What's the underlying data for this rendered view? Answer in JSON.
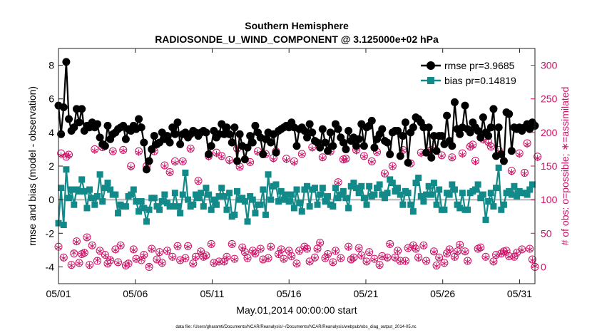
{
  "chart_data": {
    "type": "line",
    "title": "Southern Hemisphere",
    "subtitle": "RADIOSONDE_U_WIND_COMPONENT @ 3.125000e+02 hPa",
    "xlabel": "May.01,2014 00:00:00 start",
    "ylabel_left": "rmse and bias (model - observation)",
    "ylabel_right": "# of obs: o=possible; ∗=assimilated",
    "footer": "data file: /Users/gharamti/Documents/NCAR/Reanalysis/~/Documents/NCAR/Reanalysis/webpub/obs_diag_output_2014-05.nc",
    "xlim": [
      1,
      32
    ],
    "ylim_left": [
      -5,
      9
    ],
    "ylim_right": [
      -25,
      325
    ],
    "x_ticks": [
      1,
      6,
      11,
      16,
      21,
      26,
      31
    ],
    "x_tick_labels": [
      "05/01",
      "05/06",
      "05/11",
      "05/16",
      "05/21",
      "05/26",
      "05/31"
    ],
    "y_ticks_left": [
      -4,
      -2,
      0,
      2,
      4,
      6,
      8
    ],
    "y_tick_labels_left": [
      "-4",
      "-2",
      "0",
      "2",
      "4",
      "6",
      "8"
    ],
    "y_ticks_right": [
      0,
      50,
      100,
      150,
      200,
      250,
      300
    ],
    "y_tick_labels_right": [
      "0",
      "50",
      "100",
      "150",
      "200",
      "250",
      "300"
    ],
    "legend_position": "top-right",
    "colors": {
      "rmse": "#000000",
      "bias": "#138a8a",
      "obs": "#cc1166",
      "zero_line": "#c0c0c0"
    },
    "series": [
      {
        "name": "rmse",
        "legend": "rmse pr=3.9685",
        "axis": "left",
        "values": [
          5.6,
          3.9,
          5.5,
          8.2,
          4.8,
          4.1,
          4.3,
          5.4,
          4.6,
          5.4,
          4.1,
          4.4,
          4.3,
          4.6,
          4.3,
          4.5,
          3.7,
          3.3,
          3.2,
          4.4,
          3.6,
          3.9,
          4.0,
          4.2,
          4.3,
          4.4,
          3.6,
          4.2,
          4.1,
          4.4,
          4.2,
          4.8,
          4.3,
          3.4,
          1.8,
          2.3,
          3.0,
          3.8,
          3.3,
          3.4,
          4.0,
          3.6,
          3.8,
          3.4,
          4.3,
          3.9,
          4.6,
          3.3,
          3.9,
          4.0,
          3.7,
          3.9,
          4.1,
          4.0,
          3.8,
          4.0,
          4.1,
          4.0,
          2.7,
          3.2,
          4.1,
          3.7,
          3.9,
          4.5,
          3.9,
          4.3,
          3.9,
          3.4,
          4.3,
          2.3,
          3.9,
          3.2,
          2.4,
          3.1,
          3.8,
          3.4,
          4.4,
          4.0,
          3.7,
          2.7,
          3.6,
          4.0,
          3.4,
          3.9,
          2.8,
          4.1,
          4.2,
          4.3,
          4.4,
          4.3,
          4.6,
          4.3,
          3.2,
          4.2,
          4.3,
          4.1,
          3.7,
          4.5,
          4.0,
          3.5,
          3.4,
          3.1,
          4.2,
          3.4,
          2.9,
          4.0,
          3.2,
          4.5,
          4.2,
          3.7,
          3.4,
          3.0,
          4.1,
          3.5,
          3.7,
          3.2,
          3.6,
          4.5,
          3.2,
          4.3,
          4.4,
          4.7,
          3.1,
          3.6,
          3.9,
          4.2,
          3.5,
          3.4,
          2.7,
          4.0,
          4.1,
          4.1,
          2.6,
          3.8,
          4.6,
          2.2,
          4.0,
          4.3,
          4.9,
          4.8,
          4.6,
          4.3,
          2.8,
          4.3,
          2.5,
          3.8,
          2.9,
          3.8,
          3.8,
          3.3,
          5.0,
          3.5,
          3.2,
          5.8,
          4.2,
          3.9,
          4.3,
          5.6,
          4.2,
          4.0,
          4.6,
          4.3,
          4.1,
          3.7,
          4.9,
          4.0,
          3.8,
          4.3,
          5.4,
          2.6,
          4.3,
          2.7,
          2.3,
          5.2,
          5.1,
          2.9,
          4.3,
          4.2,
          4.3,
          4.1,
          4.3,
          4.5,
          4.2,
          4.6,
          4.4
        ]
      },
      {
        "name": "bias",
        "legend": "bias pr=0.14819",
        "axis": "left",
        "values": [
          -1.4,
          0.7,
          -1.5,
          1.8,
          0.1,
          0.6,
          -0.3,
          0.6,
          0.5,
          1.2,
          0.5,
          -0.5,
          0.6,
          0.1,
          -0.3,
          0.2,
          1.5,
          -0.1,
          0.7,
          1.0,
          0.6,
          0.3,
          0.3,
          -0.8,
          -0.3,
          -0.4,
          -0.4,
          0.2,
          0.3,
          0.6,
          -0.1,
          -0.7,
          -0.1,
          -0.5,
          -1.3,
          -0.6,
          0.1,
          0.1,
          -0.4,
          -0.6,
          -0.1,
          0.3,
          -0.2,
          -0.4,
          -0.4,
          0.4,
          -0.4,
          -0.8,
          0.3,
          1.6,
          0.0,
          -0.4,
          -0.3,
          0.3,
          0.1,
          0.4,
          -0.4,
          0.7,
          0.3,
          -0.6,
          0.0,
          -0.3,
          0.2,
          0.7,
          0.2,
          -0.6,
          0.4,
          -1.0,
          -0.9,
          0.5,
          0.0,
          0.1,
          -0.1,
          -1.3,
          0.2,
          0.0,
          -0.8,
          -0.3,
          -0.3,
          0.6,
          -0.9,
          1.5,
          0.0,
          0.8,
          0.9,
          -0.1,
          0.5,
          0.0,
          0.3,
          -0.1,
          0.3,
          -0.5,
          0.6,
          -0.2,
          -0.7,
          0.6,
          0.8,
          -0.4,
          0.6,
          0.7,
          -0.3,
          0.3,
          0.7,
          -0.1,
          0.2,
          -0.3,
          -0.4,
          0.7,
          0.1,
          0.3,
          0.5,
          0.1,
          -0.5,
          0.8,
          1.0,
          0.7,
          0.4,
          0.8,
          0.1,
          -0.3,
          0.8,
          0.2,
          0.3,
          0.7,
          0.9,
          0.3,
          0.1,
          0.4,
          1.2,
          1.0,
          0.5,
          0.7,
          0.3,
          -0.3,
          0.5,
          0.4,
          -0.3,
          -0.7,
          1.0,
          1.3,
          0.2,
          -0.1,
          0.3,
          0.8,
          0.3,
          1.0,
          -0.3,
          0.6,
          -0.6,
          -0.6,
          0.4,
          0.3,
          0.9,
          0.6,
          -0.3,
          -0.5,
          0.4,
          -0.6,
          -0.6,
          0.4,
          0.5,
          0.6,
          0.9,
          0.1,
          0.3,
          -1.2,
          -0.1,
          0.4,
          -0.4,
          0.7,
          1.9,
          -0.6,
          -0.3,
          0.4,
          0.5,
          0.3,
          0.8,
          0.2,
          0.5,
          0.4,
          0.4,
          0.3,
          0.6,
          0.9
        ]
      },
      {
        "name": "obs possible",
        "axis": "right",
        "values": [
          30,
          169,
          14,
          164,
          167,
          3,
          20,
          38,
          6,
          19,
          21,
          44,
          3,
          32,
          175,
          9,
          24,
          178,
          18,
          5,
          10,
          172,
          26,
          7,
          32,
          174,
          2,
          5,
          150,
          26,
          12,
          172,
          10,
          18,
          150,
          0,
          27,
          172,
          11,
          22,
          6,
          151,
          24,
          141,
          15,
          157,
          31,
          10,
          157,
          13,
          31,
          176,
          5,
          15,
          128,
          23,
          15,
          17,
          165,
          34,
          6,
          170,
          8,
          165,
          8,
          15,
          159,
          34,
          12,
          176,
          149,
          29,
          22,
          13,
          156,
          24,
          20,
          172,
          27,
          11,
          168,
          13,
          30,
          162,
          172,
          19,
          26,
          12,
          161,
          24,
          16,
          157,
          5,
          24,
          168,
          30,
          27,
          8,
          178,
          14,
          27,
          36,
          163,
          13,
          19,
          172,
          7,
          24,
          126,
          13,
          160,
          161,
          30,
          11,
          14,
          174,
          28,
          17,
          165,
          8,
          22,
          157,
          12,
          171,
          3,
          16,
          139,
          14,
          34,
          150,
          14,
          24,
          9,
          174,
          9,
          28,
          154,
          32,
          27,
          14,
          170,
          32,
          9,
          172,
          174,
          23,
          2,
          14,
          166,
          6,
          20,
          26,
          163,
          15,
          23,
          33,
          169,
          23,
          9,
          179,
          182,
          158,
          27,
          29,
          190,
          15,
          186,
          179,
          8,
          18,
          174,
          20,
          23,
          24,
          16,
          143,
          15,
          21,
          169,
          26,
          140,
          184,
          27,
          11,
          0,
          164
        ]
      },
      {
        "name": "obs assimilated",
        "axis": "right",
        "values": [
          29,
          166,
          13,
          165,
          166,
          2,
          21,
          37,
          5,
          18,
          22,
          43,
          2,
          31,
          173,
          10,
          23,
          177,
          17,
          4,
          11,
          171,
          25,
          6,
          31,
          173,
          1,
          6,
          148,
          25,
          11,
          170,
          11,
          17,
          148,
          1,
          26,
          171,
          10,
          21,
          5,
          150,
          23,
          140,
          14,
          155,
          30,
          9,
          156,
          12,
          30,
          175,
          4,
          14,
          127,
          22,
          14,
          16,
          163,
          33,
          5,
          168,
          7,
          164,
          7,
          14,
          157,
          33,
          11,
          175,
          148,
          28,
          21,
          12,
          155,
          23,
          19,
          170,
          26,
          10,
          167,
          12,
          29,
          160,
          170,
          18,
          25,
          11,
          159,
          23,
          15,
          155,
          4,
          23,
          167,
          29,
          26,
          7,
          176,
          13,
          26,
          35,
          162,
          12,
          18,
          170,
          6,
          23,
          125,
          12,
          159,
          160,
          29,
          10,
          13,
          172,
          27,
          16,
          164,
          7,
          21,
          156,
          11,
          170,
          2,
          15,
          138,
          13,
          33,
          149,
          13,
          23,
          8,
          173,
          8,
          27,
          153,
          31,
          26,
          13,
          168,
          31,
          8,
          170,
          173,
          22,
          1,
          13,
          165,
          5,
          19,
          25,
          162,
          14,
          22,
          32,
          167,
          22,
          8,
          178,
          180,
          156,
          26,
          28,
          188,
          14,
          184,
          178,
          7,
          17,
          172,
          19,
          22,
          23,
          15,
          141,
          14,
          20,
          167,
          25,
          139,
          182,
          26,
          10,
          1,
          162
        ]
      }
    ]
  }
}
